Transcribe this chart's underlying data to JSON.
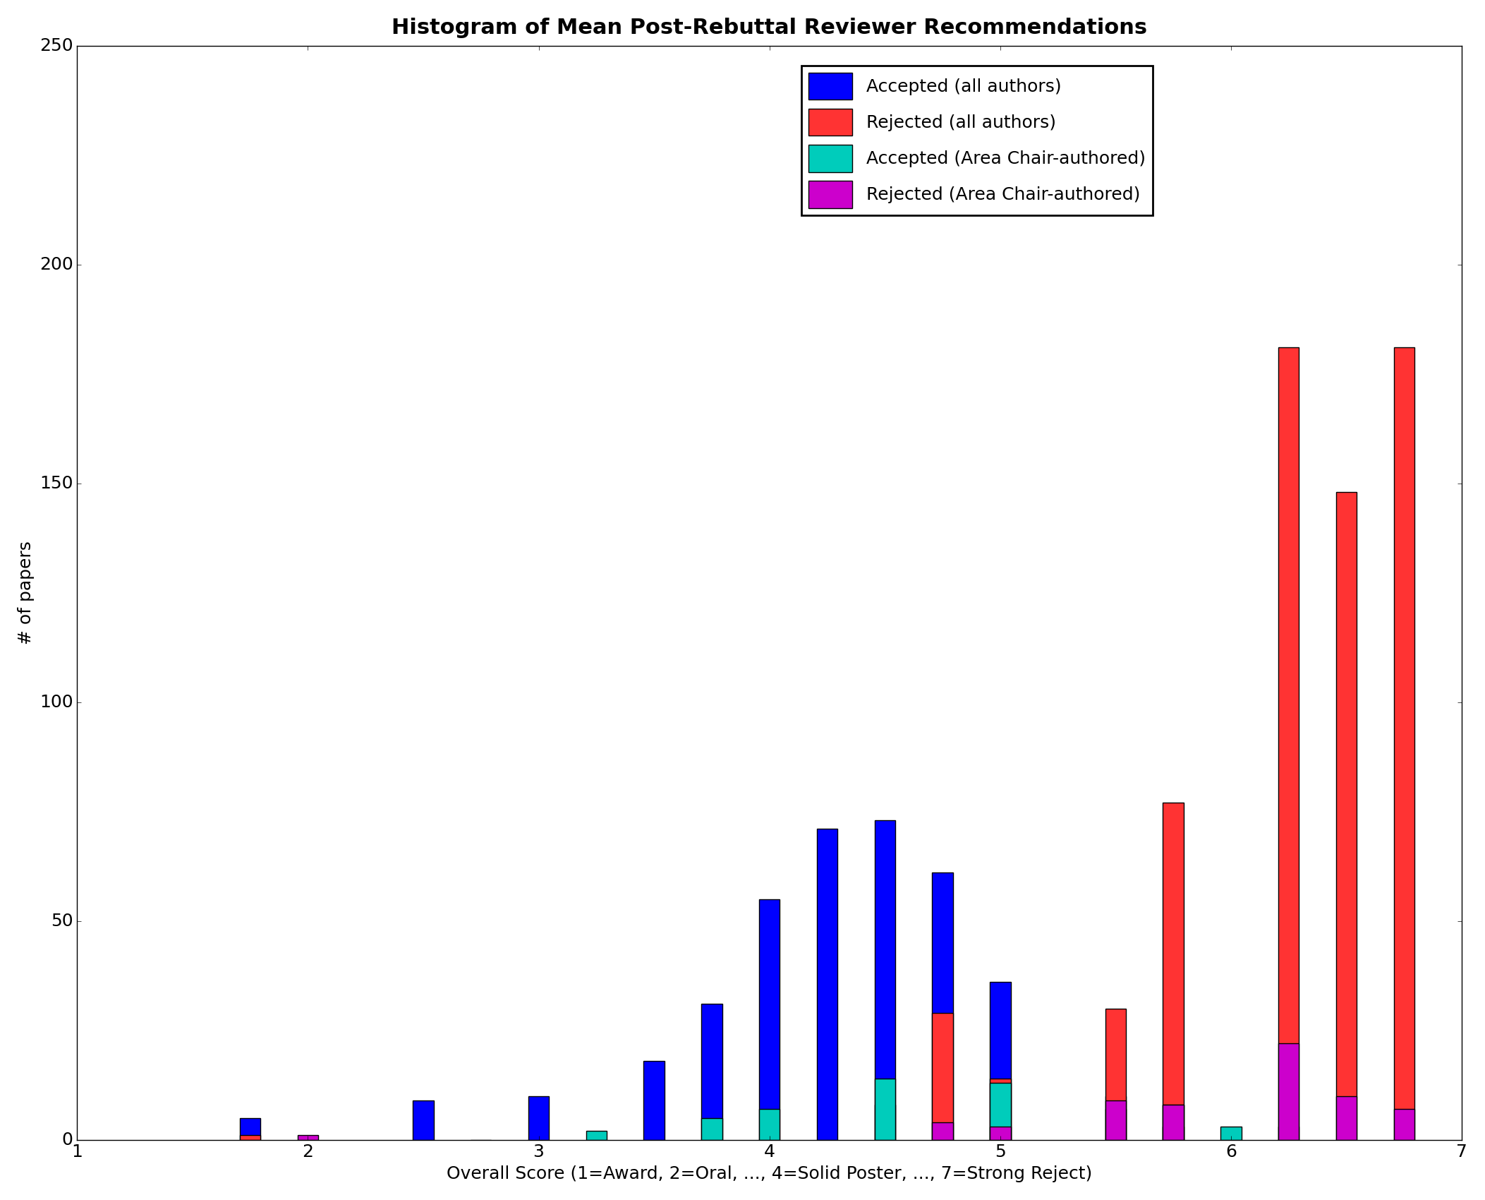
{
  "title": "Histogram of Mean Post-Rebuttal Reviewer Recommendations",
  "xlabel": "Overall Score (1=Award, 2=Oral, ..., 4=Solid Poster, ..., 7=Strong Reject)",
  "ylabel": "# of papers",
  "xlim": [
    1,
    7
  ],
  "ylim": [
    0,
    250
  ],
  "yticks": [
    0,
    50,
    100,
    150,
    200,
    250
  ],
  "xticks": [
    1,
    2,
    3,
    4,
    5,
    6,
    7
  ],
  "series": {
    "accepted_all": {
      "label": "Accepted (all authors)",
      "color": "#0000ff",
      "positions": [
        1.75,
        2.5,
        2.75,
        3.0,
        3.25,
        3.5,
        3.75,
        4.0,
        4.25,
        4.5,
        4.75,
        5.0,
        5.5,
        5.75,
        6.0,
        6.25
      ],
      "values": [
        5,
        9,
        0,
        10,
        0,
        18,
        31,
        55,
        71,
        73,
        61,
        36,
        10,
        3,
        0,
        3
      ]
    },
    "rejected_all": {
      "label": "Rejected (all authors)",
      "color": "#ff3333",
      "positions": [
        1.75,
        4.5,
        4.75,
        5.0,
        5.5,
        5.75,
        6.25,
        6.5,
        6.75
      ],
      "values": [
        1,
        8,
        29,
        14,
        30,
        77,
        181,
        148,
        181
      ]
    },
    "accepted_ac": {
      "label": "Accepted (Area Chair-authored)",
      "color": "#00ccbb",
      "positions": [
        3.25,
        3.75,
        4.0,
        4.5,
        5.0,
        5.5,
        5.75,
        6.0
      ],
      "values": [
        2,
        5,
        7,
        14,
        13,
        7,
        8,
        3
      ]
    },
    "rejected_ac": {
      "label": "Rejected (Area Chair-authored)",
      "color": "#cc00cc",
      "positions": [
        2.0,
        4.75,
        5.0,
        5.5,
        5.75,
        6.25,
        6.5,
        6.75
      ],
      "values": [
        1,
        4,
        3,
        9,
        8,
        22,
        10,
        7
      ]
    }
  },
  "bar_width": 0.09,
  "background_color": "#ffffff",
  "title_fontsize": 22,
  "label_fontsize": 18,
  "tick_fontsize": 18,
  "legend_fontsize": 18
}
